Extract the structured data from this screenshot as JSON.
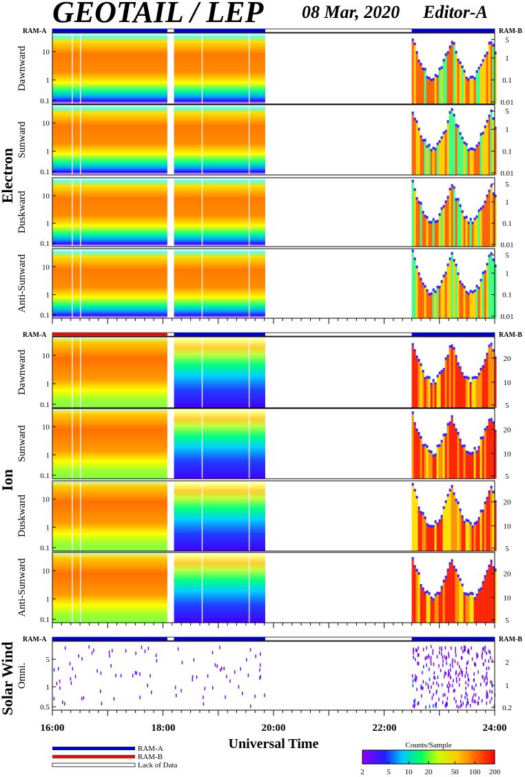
{
  "header": {
    "title": "GEOTAIL / LEP",
    "date": "08 Mar, 2020",
    "editor": "Editor-A"
  },
  "groups": {
    "electron": "Electron",
    "ion": "Ion",
    "solar_wind": "Solar Wind"
  },
  "mode_bar_labels": {
    "left": "RAM-A",
    "right": "RAM-B"
  },
  "x_axis": {
    "title": "Universal Time",
    "ticks": [
      "16:00",
      "18:00",
      "20:00",
      "22:00",
      "24:00"
    ]
  },
  "legend": {
    "items": [
      {
        "label": "RAM-A",
        "color": "#0000cc"
      },
      {
        "label": "RAM-B",
        "color": "#dd1111"
      },
      {
        "label": "Lack of Data",
        "color": "#ffffff"
      }
    ],
    "colorbar": {
      "title": "Counts/Sample",
      "ticks": [
        "2",
        "5",
        "10",
        "20",
        "50",
        "100",
        "200"
      ]
    }
  },
  "chart_data": {
    "type": "heatmap",
    "x_range_hours": [
      16,
      24
    ],
    "data_gaps_hours": [
      [
        18.08,
        18.2
      ],
      [
        19.85,
        22.5
      ]
    ],
    "thin_gaps_hours": [
      16.35,
      16.5,
      18.7,
      19.55
    ],
    "panels": [
      {
        "group": "Electron",
        "label": "Dawnward",
        "left_ticks": [
          "10",
          "1",
          "0.1"
        ],
        "right_ticks": [
          "5",
          "1",
          "0.1",
          "0.01"
        ],
        "mode_bar": [
          {
            "from": 16,
            "to": 18.08,
            "mode": "RAM-A"
          },
          {
            "from": 18.2,
            "to": 19.85,
            "mode": "RAM-A"
          },
          {
            "from": 22.5,
            "to": 24,
            "mode": "RAM-A"
          }
        ]
      },
      {
        "group": "Electron",
        "label": "Sunward",
        "left_ticks": [
          "10",
          "1",
          "0.1"
        ],
        "right_ticks": [
          "5",
          "1",
          "0.1",
          "0.01"
        ]
      },
      {
        "group": "Electron",
        "label": "Duskward",
        "left_ticks": [
          "10",
          "1",
          "0.1"
        ],
        "right_ticks": [
          "5",
          "1",
          "0.1",
          "0.01"
        ]
      },
      {
        "group": "Electron",
        "label": "Anti-Sunward",
        "left_ticks": [
          "10",
          "1",
          "0.1"
        ],
        "right_ticks": [
          "5",
          "1",
          "0.1",
          "0.01"
        ]
      },
      {
        "group": "Ion",
        "label": "Dawnward",
        "left_ticks": [
          "10",
          "1",
          "0.1"
        ],
        "right_ticks": [
          "20",
          "10",
          "5"
        ],
        "mode_bar": [
          {
            "from": 16,
            "to": 18.08,
            "mode": "RAM-B"
          },
          {
            "from": 18.2,
            "to": 19.85,
            "mode": "RAM-A"
          },
          {
            "from": 22.5,
            "to": 24,
            "mode": "RAM-A"
          }
        ]
      },
      {
        "group": "Ion",
        "label": "Sunward",
        "left_ticks": [
          "10",
          "1",
          "0.1"
        ],
        "right_ticks": [
          "20",
          "10",
          "5"
        ]
      },
      {
        "group": "Ion",
        "label": "Duskward",
        "left_ticks": [
          "10",
          "1",
          "0.1"
        ],
        "right_ticks": [
          "20",
          "10",
          "5"
        ]
      },
      {
        "group": "Ion",
        "label": "Anti-Sunward",
        "left_ticks": [
          "10",
          "1",
          "0.1"
        ],
        "right_ticks": [
          "20",
          "10",
          "5"
        ]
      },
      {
        "group": "Solar Wind",
        "label": "Omni.",
        "left_ticks": [
          "5",
          "1",
          "0.5"
        ],
        "right_ticks": [
          "2",
          "1",
          "0.2"
        ],
        "mode_bar": [
          {
            "from": 16,
            "to": 18.08,
            "mode": "RAM-A"
          },
          {
            "from": 18.2,
            "to": 19.85,
            "mode": "RAM-A"
          },
          {
            "from": 22.5,
            "to": 24,
            "mode": "RAM-A"
          }
        ]
      }
    ]
  }
}
